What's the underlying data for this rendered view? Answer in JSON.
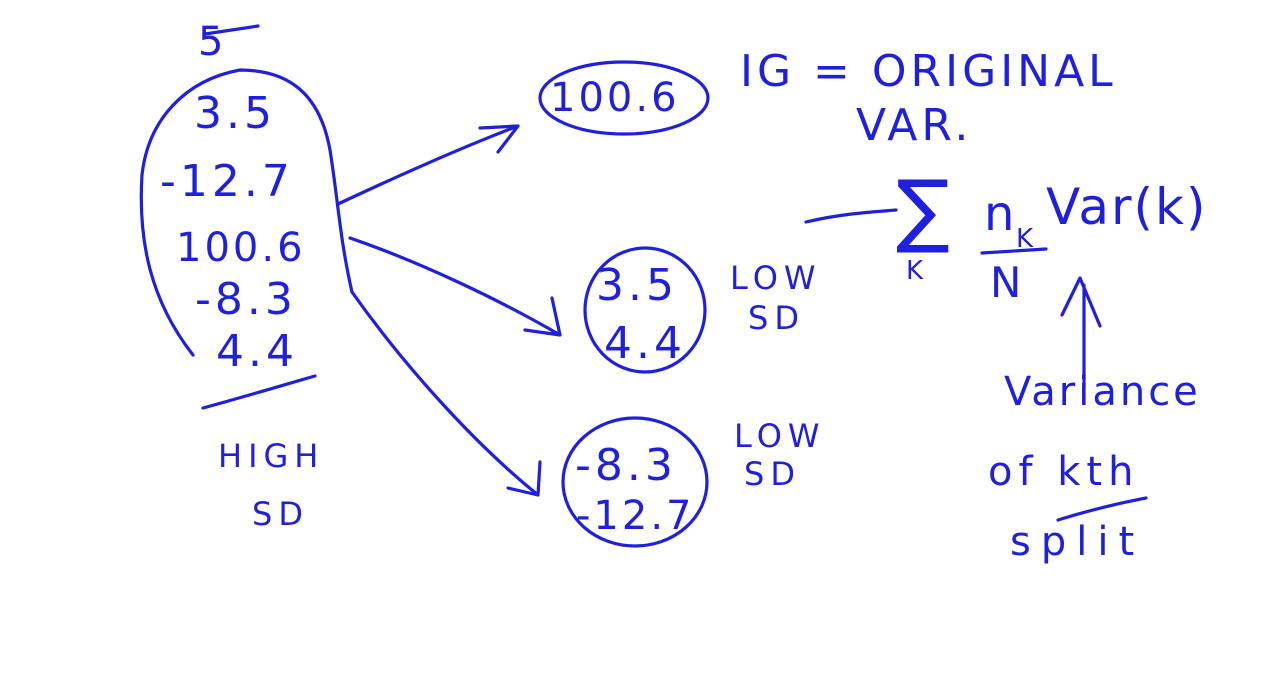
{
  "left_group": {
    "header": "5",
    "values": [
      "3.5",
      "-12.7",
      "100.6",
      "-8.3",
      "4.4"
    ],
    "label_line1": "HIGH",
    "label_line2": "SD"
  },
  "top_node": {
    "value": "100.6"
  },
  "mid_node": {
    "values": [
      "3.5",
      "4.4"
    ],
    "label_line1": "LOW",
    "label_line2": "SD"
  },
  "bottom_node": {
    "values": [
      "-8.3",
      "-12.7"
    ],
    "label_line1": "LOW",
    "label_line2": "SD"
  },
  "ig_formula": {
    "line1": "IG = ORIGINAL",
    "line2": "VAR."
  },
  "weighted_sum": {
    "sigma": "∑",
    "sub": "K",
    "numerator": "n",
    "numerator_sub": "K",
    "denominator": "N",
    "term": "Var(k)"
  },
  "annotation": {
    "line1": "Variance",
    "line2": "of kth",
    "line3": "split"
  },
  "colors": {
    "ink": "#1f1fe0",
    "background": "#ffffff"
  }
}
